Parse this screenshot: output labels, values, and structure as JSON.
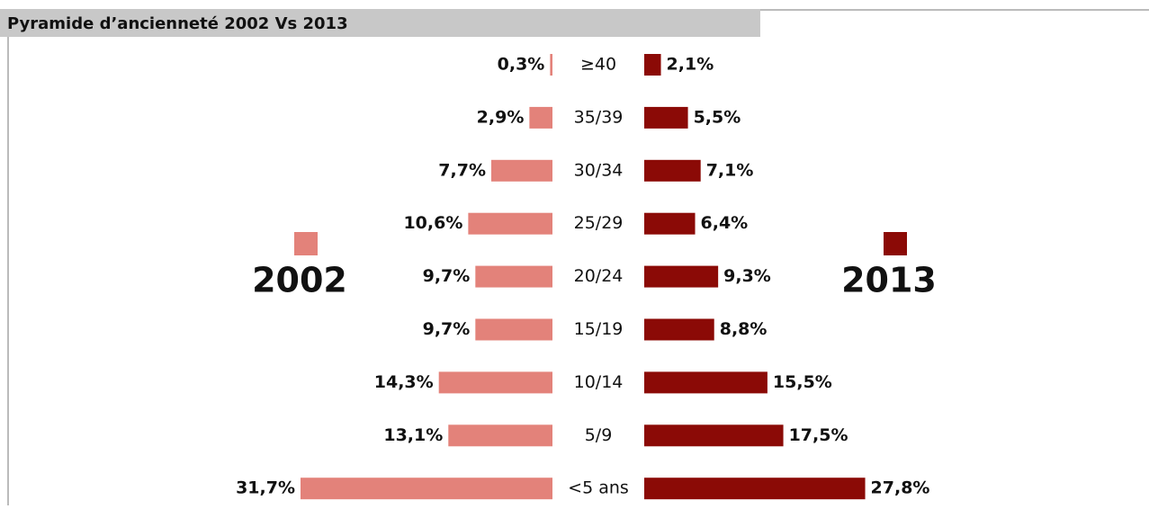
{
  "chart_data": {
    "type": "pyramid",
    "title": "Pyramide d’ancienneté 2002 Vs 2013",
    "categories": [
      "≥40",
      "35/39",
      "30/34",
      "25/29",
      "20/24",
      "15/19",
      "10/14",
      "5/9",
      "<5 ans"
    ],
    "series": [
      {
        "name": "2002",
        "color": "#e3827a",
        "side": "left",
        "values": [
          0.3,
          2.9,
          7.7,
          10.6,
          9.7,
          9.7,
          14.3,
          13.1,
          31.7
        ],
        "value_labels": [
          "0,3%",
          "2,9%",
          "7,7%",
          "10,6%",
          "9,7%",
          "9,7%",
          "14,3%",
          "13,1%",
          "31,7%"
        ]
      },
      {
        "name": "2013",
        "color": "#8b0a06",
        "side": "right",
        "values": [
          2.1,
          5.5,
          7.1,
          6.4,
          9.3,
          8.8,
          15.5,
          17.5,
          27.8
        ],
        "value_labels": [
          "2,1%",
          "5,5%",
          "7,1%",
          "6,4%",
          "9,3%",
          "8,8%",
          "15,5%",
          "17,5%",
          "27,8%"
        ]
      }
    ]
  }
}
